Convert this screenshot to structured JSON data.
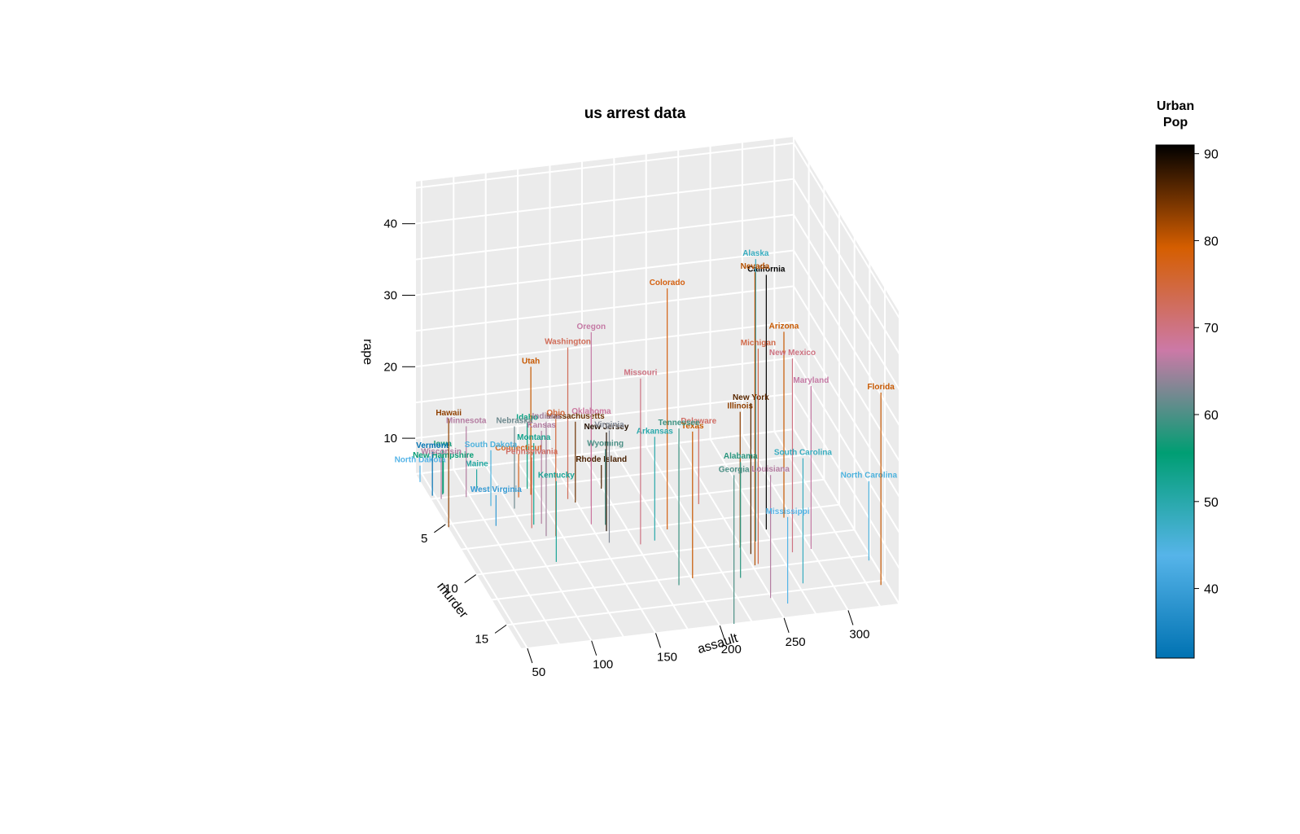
{
  "chart_data": {
    "type": "scatter3d",
    "title": "us arrest data",
    "xlabel": "assault",
    "ylabel": "murder",
    "zlabel": "rape",
    "xlim": [
      45,
      340
    ],
    "ylim": [
      0,
      17.4
    ],
    "zlim": [
      5,
      46
    ],
    "xticks": [
      "50",
      "100",
      "150",
      "200",
      "250",
      "300"
    ],
    "yticks": [
      "5",
      "10",
      "15"
    ],
    "zticks": [
      "10",
      "20",
      "30",
      "40"
    ],
    "grid": true,
    "legend": {
      "title": [
        "Urban",
        "Pop"
      ],
      "placement": "right",
      "min": 32,
      "max": 91,
      "ticks": [
        "40",
        "50",
        "60",
        "70",
        "80",
        "90"
      ],
      "colors": [
        "#0072B2",
        "#56B4E9",
        "#009E73",
        "#CC79A7",
        "#D55E00",
        "#000000"
      ]
    },
    "points": [
      {
        "name": "Alabama",
        "assault": 236,
        "murder": 13.2,
        "urbanpop": 58,
        "rape": 21.2
      },
      {
        "name": "Alaska",
        "assault": 263,
        "murder": 10.0,
        "urbanpop": 48,
        "rape": 44.5
      },
      {
        "name": "Arizona",
        "assault": 294,
        "murder": 8.1,
        "urbanpop": 80,
        "rape": 31.0
      },
      {
        "name": "Arkansas",
        "assault": 190,
        "murder": 8.8,
        "urbanpop": 50,
        "rape": 19.5
      },
      {
        "name": "California",
        "assault": 276,
        "murder": 9.0,
        "urbanpop": 91,
        "rape": 40.6
      },
      {
        "name": "Colorado",
        "assault": 204,
        "murder": 7.9,
        "urbanpop": 78,
        "rape": 38.7
      },
      {
        "name": "Connecticut",
        "assault": 110,
        "murder": 3.3,
        "urbanpop": 77,
        "rape": 11.1
      },
      {
        "name": "Delaware",
        "assault": 238,
        "murder": 5.9,
        "urbanpop": 72,
        "rape": 15.8
      },
      {
        "name": "Florida",
        "assault": 335,
        "murder": 15.4,
        "urbanpop": 80,
        "rape": 31.9
      },
      {
        "name": "Georgia",
        "assault": 211,
        "murder": 17.4,
        "urbanpop": 60,
        "rape": 25.8
      },
      {
        "name": "Hawaii",
        "assault": 46,
        "murder": 5.3,
        "urbanpop": 83,
        "rape": 20.2
      },
      {
        "name": "Idaho",
        "assault": 120,
        "murder": 2.6,
        "urbanpop": 54,
        "rape": 14.2
      },
      {
        "name": "Illinois",
        "assault": 249,
        "murder": 10.4,
        "urbanpop": 83,
        "rape": 24.0
      },
      {
        "name": "Indiana",
        "assault": 113,
        "murder": 7.2,
        "urbanpop": 65,
        "rape": 21.0
      },
      {
        "name": "Iowa",
        "assault": 56,
        "murder": 2.2,
        "urbanpop": 57,
        "rape": 11.3
      },
      {
        "name": "Kansas",
        "assault": 115,
        "murder": 6.0,
        "urbanpop": 66,
        "rape": 18.0
      },
      {
        "name": "Kentucky",
        "assault": 109,
        "murder": 9.7,
        "urbanpop": 52,
        "rape": 16.3
      },
      {
        "name": "Louisiana",
        "assault": 249,
        "murder": 15.4,
        "urbanpop": 66,
        "rape": 22.2
      },
      {
        "name": "Maine",
        "assault": 83,
        "murder": 2.1,
        "urbanpop": 51,
        "rape": 7.8
      },
      {
        "name": "Maryland",
        "assault": 300,
        "murder": 11.3,
        "urbanpop": 67,
        "rape": 27.8
      },
      {
        "name": "Massachusetts",
        "assault": 149,
        "murder": 4.4,
        "urbanpop": 85,
        "rape": 16.3
      },
      {
        "name": "Michigan",
        "assault": 255,
        "murder": 12.1,
        "urbanpop": 74,
        "rape": 35.1
      },
      {
        "name": "Minnesota",
        "assault": 72,
        "murder": 2.7,
        "urbanpop": 66,
        "rape": 14.9
      },
      {
        "name": "Mississippi",
        "assault": 259,
        "murder": 16.1,
        "urbanpop": 44,
        "rape": 17.1
      },
      {
        "name": "Missouri",
        "assault": 178,
        "murder": 9.0,
        "urbanpop": 70,
        "rape": 28.2
      },
      {
        "name": "Montana",
        "assault": 109,
        "murder": 6.0,
        "urbanpop": 53,
        "rape": 16.4
      },
      {
        "name": "Nebraska",
        "assault": 102,
        "murder": 4.3,
        "urbanpop": 62,
        "rape": 16.5
      },
      {
        "name": "Nevada",
        "assault": 252,
        "murder": 12.2,
        "urbanpop": 81,
        "rape": 46.0
      },
      {
        "name": "New Hampshire",
        "assault": 57,
        "murder": 2.1,
        "urbanpop": 56,
        "rape": 9.5
      },
      {
        "name": "New Jersey",
        "assault": 159,
        "murder": 7.4,
        "urbanpop": 89,
        "rape": 18.8
      },
      {
        "name": "New Mexico",
        "assault": 285,
        "murder": 11.4,
        "urbanpop": 70,
        "rape": 32.1
      },
      {
        "name": "New York",
        "assault": 254,
        "murder": 11.1,
        "urbanpop": 86,
        "rape": 26.1
      },
      {
        "name": "North Carolina",
        "assault": 337,
        "murder": 13.0,
        "urbanpop": 45,
        "rape": 16.1
      },
      {
        "name": "North Dakota",
        "assault": 45,
        "murder": 0.8,
        "urbanpop": 44,
        "rape": 7.3
      },
      {
        "name": "Ohio",
        "assault": 120,
        "murder": 7.3,
        "urbanpop": 75,
        "rape": 21.4
      },
      {
        "name": "Oklahoma",
        "assault": 151,
        "murder": 6.6,
        "urbanpop": 68,
        "rape": 20.0
      },
      {
        "name": "Oregon",
        "assault": 159,
        "murder": 4.9,
        "urbanpop": 67,
        "rape": 29.3
      },
      {
        "name": "Pennsylvania",
        "assault": 106,
        "murder": 6.3,
        "urbanpop": 72,
        "rape": 14.9
      },
      {
        "name": "Rhode Island",
        "assault": 174,
        "murder": 3.4,
        "urbanpop": 87,
        "rape": 8.3
      },
      {
        "name": "South Carolina",
        "assault": 279,
        "murder": 14.4,
        "urbanpop": 48,
        "rape": 22.5
      },
      {
        "name": "South Dakota",
        "assault": 86,
        "murder": 3.8,
        "urbanpop": 45,
        "rape": 12.8
      },
      {
        "name": "Tennessee",
        "assault": 188,
        "murder": 13.2,
        "urbanpop": 59,
        "rape": 26.9
      },
      {
        "name": "Texas",
        "assault": 201,
        "murder": 12.7,
        "urbanpop": 80,
        "rape": 25.5
      },
      {
        "name": "Utah",
        "assault": 120,
        "murder": 3.2,
        "urbanpop": 80,
        "rape": 22.9
      },
      {
        "name": "Vermont",
        "assault": 48,
        "murder": 2.2,
        "urbanpop": 32,
        "rape": 11.2
      },
      {
        "name": "Virginia",
        "assault": 156,
        "murder": 8.5,
        "urbanpop": 63,
        "rape": 20.7
      },
      {
        "name": "Washington",
        "assault": 145,
        "murder": 4.0,
        "urbanpop": 73,
        "rape": 26.2
      },
      {
        "name": "West Virginia",
        "assault": 81,
        "murder": 5.7,
        "urbanpop": 39,
        "rape": 9.3
      },
      {
        "name": "Wisconsin",
        "assault": 53,
        "murder": 2.6,
        "urbanpop": 66,
        "rape": 10.8
      },
      {
        "name": "Wyoming",
        "assault": 161,
        "murder": 6.8,
        "urbanpop": 60,
        "rape": 15.6
      }
    ]
  }
}
